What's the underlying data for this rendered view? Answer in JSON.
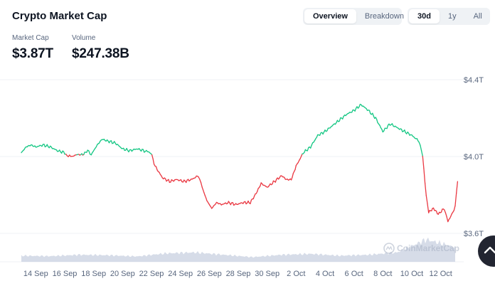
{
  "header": {
    "title": "Crypto Market Cap",
    "view_tabs": [
      {
        "label": "Overview",
        "active": true
      },
      {
        "label": "Breakdown",
        "active": false
      }
    ],
    "range_tabs": [
      {
        "label": "30d",
        "active": true
      },
      {
        "label": "1y",
        "active": false
      },
      {
        "label": "All",
        "active": false
      }
    ]
  },
  "stats": {
    "market_cap": {
      "label": "Market Cap",
      "value": "$3.87T"
    },
    "volume": {
      "label": "Volume",
      "value": "$247.38B"
    }
  },
  "watermark": "CoinMarketCap",
  "colors": {
    "up": "#16c784",
    "down": "#ea3943",
    "volume": "#cfd6e4",
    "grid": "#eff2f5",
    "text": "#58667e"
  },
  "icons": {
    "scroll_top": "chevron-up-icon",
    "logo": "coinmarketcap-logo-icon"
  },
  "chart_data": {
    "type": "line",
    "title": "",
    "xlabel": "",
    "ylabel": "",
    "x_ticks": [
      "14 Sep",
      "16 Sep",
      "18 Sep",
      "20 Sep",
      "22 Sep",
      "24 Sep",
      "26 Sep",
      "28 Sep",
      "30 Sep",
      "2 Oct",
      "4 Oct",
      "6 Oct",
      "8 Oct",
      "10 Oct",
      "12 Oct"
    ],
    "y_ticks": [
      "$4.4T",
      "$4.0T",
      "$3.6T"
    ],
    "y_tick_values": [
      4.4,
      4.0,
      3.6
    ],
    "ylim": [
      3.6,
      4.4
    ],
    "x_range": [
      "2025-09-13",
      "2025-10-13"
    ],
    "baseline": 4.01,
    "series": [
      {
        "points": [
          [
            "2025-09-13T00:00",
            4.02
          ],
          [
            "2025-09-13T08:00",
            4.05
          ],
          [
            "2025-09-13T16:00",
            4.06
          ],
          [
            "2025-09-14T00:00",
            4.05
          ],
          [
            "2025-09-14T12:00",
            4.06
          ],
          [
            "2025-09-15T00:00",
            4.05
          ],
          [
            "2025-09-15T12:00",
            4.03
          ],
          [
            "2025-09-16T00:00",
            4.02
          ],
          [
            "2025-09-16T06:00",
            4.0
          ],
          [
            "2025-09-16T12:00",
            4.0
          ],
          [
            "2025-09-16T20:00",
            4.01
          ],
          [
            "2025-09-17T06:00",
            4.01
          ],
          [
            "2025-09-17T14:00",
            4.03
          ],
          [
            "2025-09-17T20:00",
            4.01
          ],
          [
            "2025-09-18T06:00",
            4.06
          ],
          [
            "2025-09-18T14:00",
            4.09
          ],
          [
            "2025-09-19T00:00",
            4.08
          ],
          [
            "2025-09-19T12:00",
            4.07
          ],
          [
            "2025-09-20T00:00",
            4.04
          ],
          [
            "2025-09-20T12:00",
            4.03
          ],
          [
            "2025-09-21T00:00",
            4.04
          ],
          [
            "2025-09-21T12:00",
            4.03
          ],
          [
            "2025-09-21T23:00",
            4.02
          ],
          [
            "2025-09-22T06:00",
            3.95
          ],
          [
            "2025-09-22T18:00",
            3.89
          ],
          [
            "2025-09-23T06:00",
            3.87
          ],
          [
            "2025-09-23T18:00",
            3.88
          ],
          [
            "2025-09-24T06:00",
            3.87
          ],
          [
            "2025-09-24T18:00",
            3.88
          ],
          [
            "2025-09-25T06:00",
            3.9
          ],
          [
            "2025-09-25T12:00",
            3.84
          ],
          [
            "2025-09-25T20:00",
            3.77
          ],
          [
            "2025-09-26T04:00",
            3.73
          ],
          [
            "2025-09-26T12:00",
            3.76
          ],
          [
            "2025-09-26T20:00",
            3.75
          ],
          [
            "2025-09-27T08:00",
            3.76
          ],
          [
            "2025-09-27T20:00",
            3.75
          ],
          [
            "2025-09-28T08:00",
            3.76
          ],
          [
            "2025-09-28T20:00",
            3.76
          ],
          [
            "2025-09-29T06:00",
            3.81
          ],
          [
            "2025-09-29T14:00",
            3.86
          ],
          [
            "2025-09-30T00:00",
            3.84
          ],
          [
            "2025-09-30T12:00",
            3.87
          ],
          [
            "2025-10-01T00:00",
            3.9
          ],
          [
            "2025-10-01T08:00",
            3.88
          ],
          [
            "2025-10-01T16:00",
            3.88
          ],
          [
            "2025-10-02T00:00",
            3.95
          ],
          [
            "2025-10-02T12:00",
            4.02
          ],
          [
            "2025-10-03T00:00",
            4.05
          ],
          [
            "2025-10-03T12:00",
            4.11
          ],
          [
            "2025-10-04T00:00",
            4.13
          ],
          [
            "2025-10-04T12:00",
            4.16
          ],
          [
            "2025-10-05T00:00",
            4.19
          ],
          [
            "2025-10-05T12:00",
            4.22
          ],
          [
            "2025-10-06T00:00",
            4.24
          ],
          [
            "2025-10-06T12:00",
            4.27
          ],
          [
            "2025-10-07T00:00",
            4.24
          ],
          [
            "2025-10-07T12:00",
            4.2
          ],
          [
            "2025-10-08T00:00",
            4.13
          ],
          [
            "2025-10-08T12:00",
            4.17
          ],
          [
            "2025-10-09T00:00",
            4.15
          ],
          [
            "2025-10-09T12:00",
            4.13
          ],
          [
            "2025-10-10T00:00",
            4.11
          ],
          [
            "2025-10-10T12:00",
            4.08
          ],
          [
            "2025-10-10T18:00",
            4.0
          ],
          [
            "2025-10-11T00:00",
            3.8
          ],
          [
            "2025-10-11T04:00",
            3.71
          ],
          [
            "2025-10-11T12:00",
            3.73
          ],
          [
            "2025-10-11T20:00",
            3.7
          ],
          [
            "2025-10-12T06:00",
            3.73
          ],
          [
            "2025-10-12T12:00",
            3.66
          ],
          [
            "2025-10-12T20:00",
            3.71
          ],
          [
            "2025-10-13T00:00",
            3.74
          ],
          [
            "2025-10-13T04:00",
            3.87
          ]
        ]
      }
    ],
    "volume": {
      "points": [
        [
          "2025-09-13",
          0.26
        ],
        [
          "2025-09-15",
          0.24
        ],
        [
          "2025-09-17",
          0.3
        ],
        [
          "2025-09-19",
          0.28
        ],
        [
          "2025-09-21",
          0.23
        ],
        [
          "2025-09-23",
          0.36
        ],
        [
          "2025-09-25",
          0.4
        ],
        [
          "2025-09-27",
          0.3
        ],
        [
          "2025-09-29",
          0.2
        ],
        [
          "2025-10-01",
          0.3
        ],
        [
          "2025-10-03",
          0.34
        ],
        [
          "2025-10-05",
          0.26
        ],
        [
          "2025-10-07",
          0.3
        ],
        [
          "2025-10-09",
          0.4
        ],
        [
          "2025-10-11",
          0.95
        ],
        [
          "2025-10-13",
          0.62
        ]
      ]
    }
  }
}
